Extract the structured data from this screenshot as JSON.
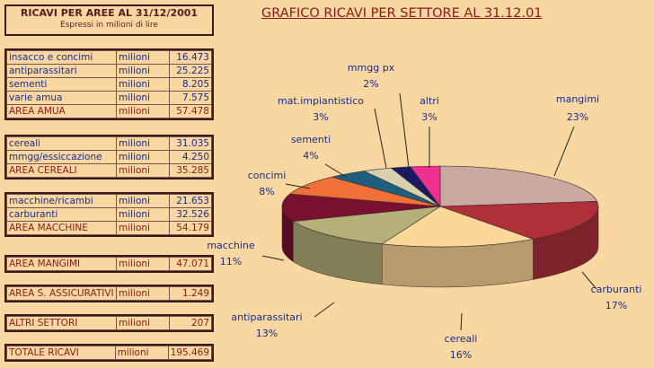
{
  "table": {
    "title": "RICAVI PER AREE AL 31/12/2001",
    "subtitle": "Espressi in milioni di lire",
    "unit": "milioni",
    "groups": [
      {
        "rows": [
          {
            "name": "insacco e concimi",
            "unit": "milioni",
            "value": "16.473"
          },
          {
            "name": "antiparassitari",
            "unit": "milioni",
            "value": "25.225"
          },
          {
            "name": "sementi",
            "unit": "milioni",
            "value": "8.205"
          },
          {
            "name": "varie amua",
            "unit": "milioni",
            "value": "7.575"
          },
          {
            "name": "AREA AMUA",
            "unit": "milioni",
            "value": "57.478",
            "total": true
          }
        ]
      },
      {
        "rows": [
          {
            "name": "cereali",
            "unit": "milioni",
            "value": "31.035"
          },
          {
            "name": "mmgg/essiccazione",
            "unit": "milioni",
            "value": "4.250"
          },
          {
            "name": "AREA CEREALI",
            "unit": "milioni",
            "value": "35.285",
            "total": true
          }
        ]
      },
      {
        "rows": [
          {
            "name": "macchine/ricambi",
            "unit": "milioni",
            "value": "21.653"
          },
          {
            "name": "carburanti",
            "unit": "milioni",
            "value": "32.526"
          },
          {
            "name": "AREA MACCHINE",
            "unit": "milioni",
            "value": "54.179",
            "total": true
          }
        ]
      },
      {
        "rows": [
          {
            "name": "AREA MANGIMI",
            "unit": "milioni",
            "value": "47.071",
            "total": true
          }
        ]
      },
      {
        "rows": [
          {
            "name": "AREA S. ASSICURATIVI",
            "unit": "milioni",
            "value": "1.249",
            "total": true
          }
        ]
      },
      {
        "rows": [
          {
            "name": "ALTRI SETTORI",
            "unit": "milioni",
            "value": "207",
            "total": true
          }
        ]
      },
      {
        "rows": [
          {
            "name": "TOTALE RICAVI",
            "unit": "milioni",
            "value": "195.469",
            "total": true
          }
        ]
      }
    ]
  },
  "chart_data": {
    "type": "pie",
    "title": "GRAFICO RICAVI PER SETTORE AL 31.12.01",
    "slices": [
      {
        "label": "mangimi",
        "pct_label": "23%",
        "value": 23,
        "color": "#c9a9a0"
      },
      {
        "label": "carburanti",
        "pct_label": "17%",
        "value": 17,
        "color": "#b0303a"
      },
      {
        "label": "cereali",
        "pct_label": "16%",
        "value": 16,
        "color": "#fbd798"
      },
      {
        "label": "antiparassitari",
        "pct_label": "13%",
        "value": 13,
        "color": "#b5b07a"
      },
      {
        "label": "macchine",
        "pct_label": "11%",
        "value": 11,
        "color": "#7a1030"
      },
      {
        "label": "concimi",
        "pct_label": "8%",
        "value": 8,
        "color": "#f07038"
      },
      {
        "label": "sementi",
        "pct_label": "4%",
        "value": 4,
        "color": "#1e5f80"
      },
      {
        "label": "mat.impiantistico",
        "pct_label": "3%",
        "value": 3,
        "color": "#d8d0b0"
      },
      {
        "label": "mmgg px",
        "pct_label": "2%",
        "value": 2,
        "color": "#1a1a60"
      },
      {
        "label": "altri",
        "pct_label": "3%",
        "value": 3,
        "color": "#f03090"
      }
    ]
  }
}
